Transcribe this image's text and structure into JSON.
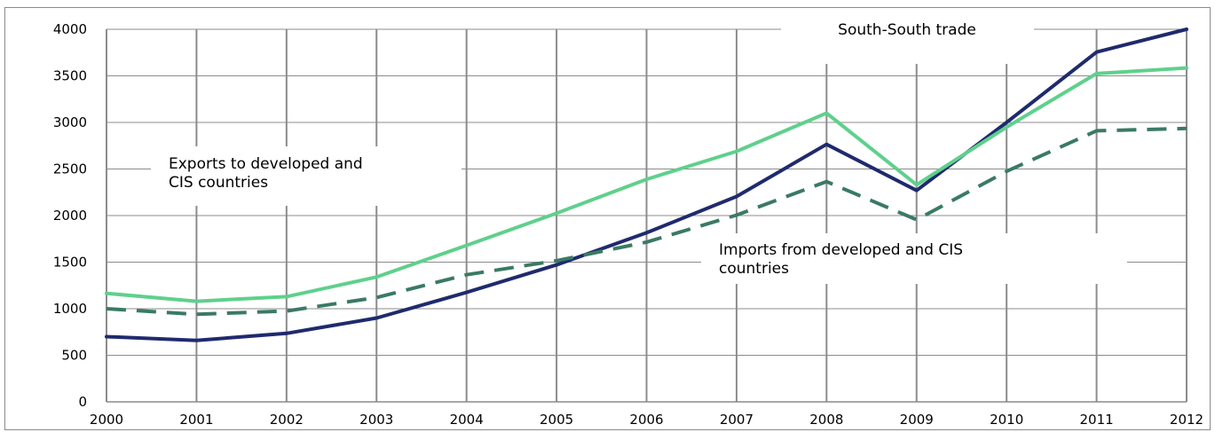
{
  "chart_data": {
    "type": "line",
    "x": [
      "2000",
      "2001",
      "2002",
      "2003",
      "2004",
      "2005",
      "2006",
      "2007",
      "2008",
      "2009",
      "2010",
      "2011",
      "2012"
    ],
    "ylim": [
      0,
      4000
    ],
    "yticks": [
      0,
      500,
      1000,
      1500,
      2000,
      2500,
      3000,
      3500,
      4000
    ],
    "grid": true,
    "legend": "none",
    "series": [
      {
        "name": "South-South trade",
        "style": "solid",
        "color": "#1f2a6e",
        "values": [
          700,
          660,
          735,
          900,
          1175,
          1470,
          1815,
          2205,
          2765,
          2270,
          3000,
          3755,
          4000
        ]
      },
      {
        "name": "Exports to developed and CIS countries",
        "style": "solid",
        "color": "#5fd08c",
        "values": [
          1165,
          1080,
          1130,
          1340,
          1680,
          2025,
          2390,
          2690,
          3100,
          2330,
          2950,
          3525,
          3585
        ]
      },
      {
        "name": "Imports from developed and CIS countries",
        "style": "dashed",
        "color": "#3a7a63",
        "values": [
          1000,
          940,
          975,
          1120,
          1365,
          1515,
          1715,
          2005,
          2365,
          1955,
          2475,
          2910,
          2935
        ]
      }
    ],
    "annotations": [
      {
        "lines": [
          "South-South trade"
        ],
        "series": 0
      },
      {
        "lines": [
          "Exports to developed and",
          "CIS countries"
        ],
        "series": 1
      },
      {
        "lines": [
          "Imports from developed and CIS",
          "countries"
        ],
        "series": 2
      }
    ]
  }
}
